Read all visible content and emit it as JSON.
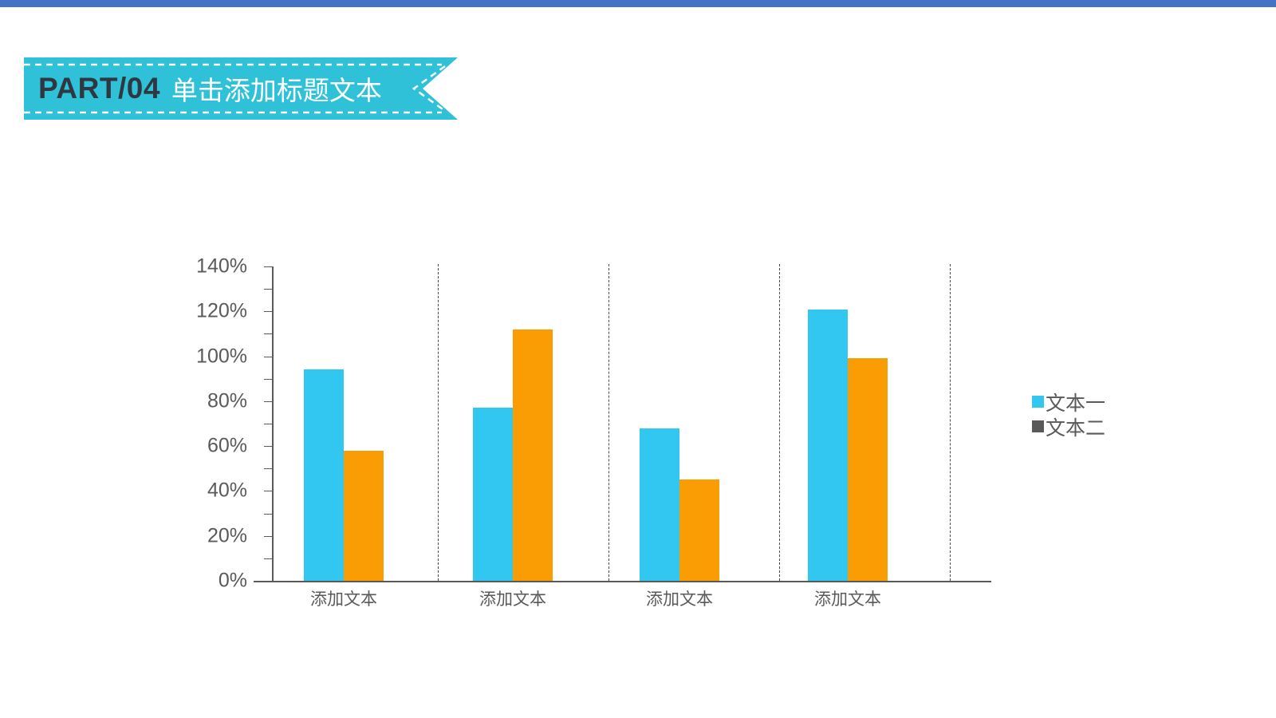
{
  "slide": {
    "top_bar_color": "#4472C4",
    "background_color": "#FFFFFF"
  },
  "header": {
    "part_label": "PART/04",
    "title": "单击添加标题文本",
    "ribbon_color": "#2FC1D8",
    "part_label_color": "#2F3841",
    "title_color": "#FFFFFF",
    "border_style": "white dashed inner stitch, notched flag tail on right"
  },
  "chart_data": {
    "type": "bar",
    "title": "",
    "xlabel": "",
    "ylabel": "",
    "categories": [
      "添加文本",
      "添加文本",
      "添加文本",
      "添加文本"
    ],
    "series": [
      {
        "name": "文本一",
        "color": "#31C7F0",
        "legend_color": "#31C7F0",
        "values": [
          94,
          77,
          68,
          121
        ]
      },
      {
        "name": "文本二",
        "color": "#FA9D05",
        "legend_color": "#595959",
        "values": [
          58,
          112,
          45,
          99
        ]
      }
    ],
    "ylim": [
      0,
      140
    ],
    "ytick_label_step": 20,
    "ytick_minor_step": 10,
    "ytick_labels": [
      "140%",
      "120%",
      "100%",
      "80%",
      "60%",
      "40%",
      "20%",
      "0%"
    ],
    "values_unit": "%",
    "grid": "vertical dashed separators between categories, no horizontal gridlines",
    "legend_position": "right",
    "axis_color": "#595959",
    "label_color": "#595959"
  }
}
